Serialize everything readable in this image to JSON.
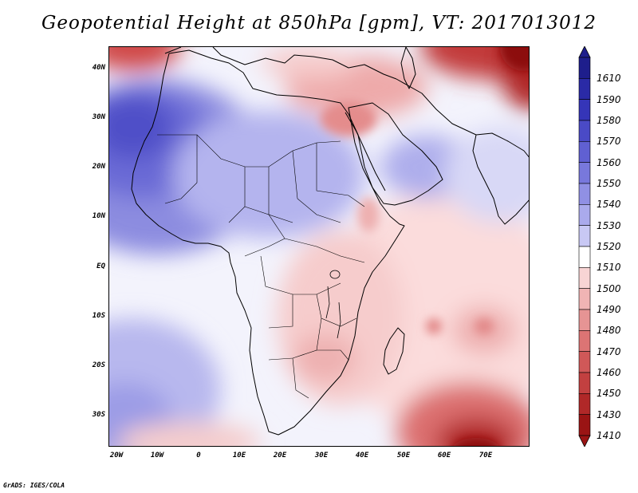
{
  "title": "Geopotential Height at 850hPa [gpm], VT: 2017013012",
  "footer": "GrADS: IGES/COLA",
  "map": {
    "region": "Africa and Western Indian Ocean",
    "lon_range": [
      -25,
      80
    ],
    "lat_range": [
      -37,
      45
    ],
    "lat_ticks": [
      "40N",
      "30N",
      "20N",
      "10N",
      "EQ",
      "10S",
      "20S",
      "30S"
    ],
    "lon_ticks": [
      "20W",
      "10W",
      "0",
      "10E",
      "20E",
      "30E",
      "40E",
      "50E",
      "60E",
      "70E"
    ]
  },
  "colorbar": {
    "levels": [
      "1610",
      "1590",
      "1580",
      "1570",
      "1560",
      "1550",
      "1540",
      "1530",
      "1520",
      "1510",
      "1500",
      "1490",
      "1480",
      "1470",
      "1460",
      "1450",
      "1430",
      "1410"
    ],
    "colors": [
      "#1e1e8c",
      "#2a2aa6",
      "#3535b8",
      "#4a4ac6",
      "#6060d2",
      "#7878dc",
      "#9090e4",
      "#aaaaec",
      "#c8c8f4",
      "#ffffff",
      "#f8d4d4",
      "#f0b4b4",
      "#e69494",
      "#dc7474",
      "#d05858",
      "#c24040",
      "#b02828",
      "#9a1414"
    ]
  }
}
